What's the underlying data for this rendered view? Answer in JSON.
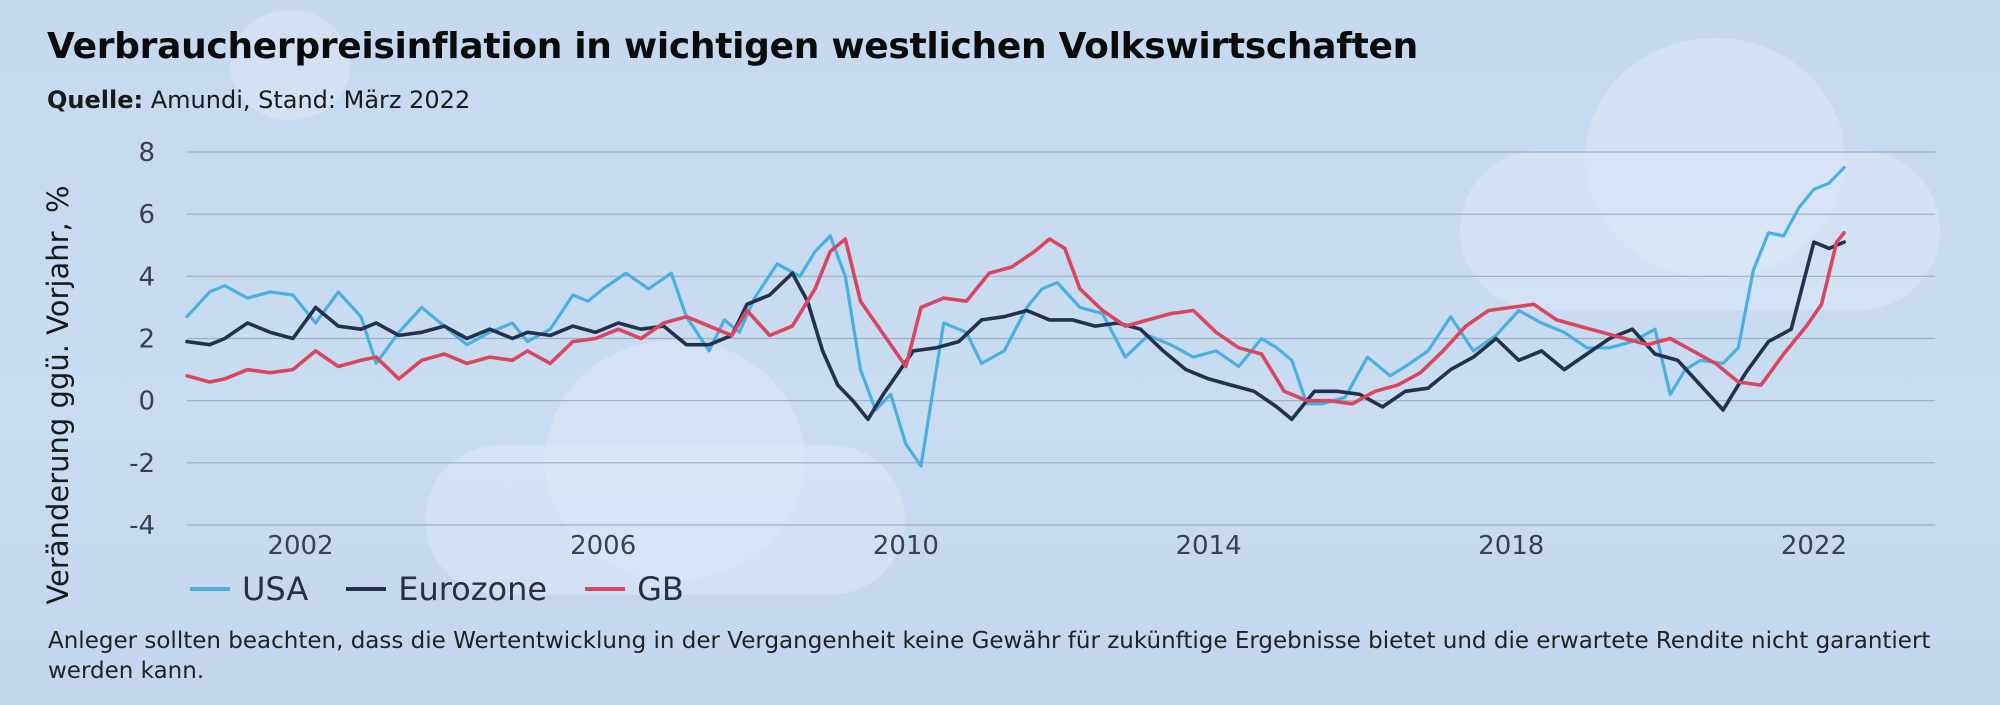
{
  "title": "Verbraucherpreisinflation in wichtigen westlichen Volkswirtschaften",
  "source": {
    "label": "Quelle:",
    "text": "Amundi, Stand: März 2022"
  },
  "disclaimer": "Anleger sollten beachten, dass die Wertentwicklung in der Vergangenheit keine Gewähr für zukünftige Ergebnisse bietet und die erwartete Rendite nicht garantiert werden kann.",
  "colors": {
    "USA": "#4ab0e4",
    "Eurozone": "#23304f",
    "GB": "#d8475f",
    "grid": "#9fafc4",
    "axis_text": "#3a3f55"
  },
  "chart_data": {
    "type": "line",
    "title": "Verbraucherpreisinflation in wichtigen westlichen Volkswirtschaften",
    "xlabel": "",
    "ylabel": "Veränderung ggü. Vorjahr, %",
    "xlim": [
      2000.5,
      2023.6
    ],
    "ylim": [
      -4,
      8
    ],
    "x_ticks": [
      2002,
      2006,
      2010,
      2014,
      2018,
      2022
    ],
    "y_ticks": [
      8,
      6,
      4,
      2,
      0,
      -2,
      -4
    ],
    "grid": true,
    "legend": "bottom-left",
    "series": [
      {
        "name": "USA",
        "x": [
          2000.5,
          2000.8,
          2001.0,
          2001.3,
          2001.6,
          2001.9,
          2002.2,
          2002.5,
          2002.8,
          2003.0,
          2003.3,
          2003.6,
          2003.9,
          2004.2,
          2004.5,
          2004.8,
          2005.0,
          2005.3,
          2005.6,
          2005.8,
          2006.0,
          2006.3,
          2006.6,
          2006.9,
          2007.1,
          2007.4,
          2007.6,
          2007.8,
          2008.0,
          2008.3,
          2008.6,
          2008.8,
          2009.0,
          2009.2,
          2009.4,
          2009.6,
          2009.8,
          2010.0,
          2010.2,
          2010.5,
          2010.8,
          2011.0,
          2011.3,
          2011.6,
          2011.8,
          2012.0,
          2012.3,
          2012.6,
          2012.9,
          2013.2,
          2013.5,
          2013.8,
          2014.1,
          2014.4,
          2014.7,
          2014.9,
          2015.1,
          2015.3,
          2015.5,
          2015.8,
          2016.1,
          2016.4,
          2016.6,
          2016.9,
          2017.2,
          2017.5,
          2017.8,
          2018.1,
          2018.4,
          2018.7,
          2019.0,
          2019.3,
          2019.6,
          2019.9,
          2020.1,
          2020.3,
          2020.5,
          2020.8,
          2021.0,
          2021.2,
          2021.4,
          2021.6,
          2021.8,
          2022.0,
          2022.2,
          2022.4
        ],
        "y": [
          2.7,
          3.5,
          3.7,
          3.3,
          3.5,
          3.4,
          2.5,
          3.5,
          2.7,
          1.2,
          2.2,
          3.0,
          2.4,
          1.8,
          2.2,
          2.5,
          1.9,
          2.3,
          3.4,
          3.2,
          3.6,
          4.1,
          3.6,
          4.1,
          2.7,
          1.6,
          2.6,
          2.2,
          3.3,
          4.4,
          4.0,
          4.8,
          5.3,
          4.0,
          1.0,
          -0.3,
          0.2,
          -1.4,
          -2.1,
          2.5,
          2.2,
          1.2,
          1.6,
          3.0,
          3.6,
          3.8,
          3.0,
          2.8,
          1.4,
          2.1,
          1.8,
          1.4,
          1.6,
          1.1,
          2.0,
          1.7,
          1.3,
          -0.1,
          -0.1,
          0.1,
          1.4,
          0.8,
          1.1,
          1.6,
          2.7,
          1.6,
          2.1,
          2.9,
          2.5,
          2.2,
          1.7,
          1.7,
          1.9,
          2.3,
          0.2,
          1.0,
          1.3,
          1.2,
          1.7,
          4.2,
          5.4,
          5.3,
          6.2,
          6.8,
          7.0,
          7.5
        ]
      },
      {
        "name": "Eurozone",
        "x": [
          2000.5,
          2000.8,
          2001.0,
          2001.3,
          2001.6,
          2001.9,
          2002.2,
          2002.5,
          2002.8,
          2003.0,
          2003.3,
          2003.6,
          2003.9,
          2004.2,
          2004.5,
          2004.8,
          2005.0,
          2005.3,
          2005.6,
          2005.9,
          2006.2,
          2006.5,
          2006.8,
          2007.1,
          2007.4,
          2007.7,
          2007.9,
          2008.2,
          2008.5,
          2008.7,
          2008.9,
          2009.1,
          2009.3,
          2009.5,
          2009.7,
          2009.9,
          2010.1,
          2010.4,
          2010.7,
          2011.0,
          2011.3,
          2011.6,
          2011.9,
          2012.2,
          2012.5,
          2012.8,
          2013.1,
          2013.4,
          2013.7,
          2014.0,
          2014.3,
          2014.6,
          2014.9,
          2015.1,
          2015.4,
          2015.7,
          2016.0,
          2016.3,
          2016.6,
          2016.9,
          2017.2,
          2017.5,
          2017.8,
          2018.1,
          2018.4,
          2018.7,
          2019.0,
          2019.3,
          2019.6,
          2019.9,
          2020.2,
          2020.5,
          2020.8,
          2021.1,
          2021.4,
          2021.7,
          2022.0,
          2022.2,
          2022.4
        ],
        "y": [
          1.9,
          1.8,
          2.0,
          2.5,
          2.2,
          2.0,
          3.0,
          2.4,
          2.3,
          2.5,
          2.1,
          2.2,
          2.4,
          2.0,
          2.3,
          2.0,
          2.2,
          2.1,
          2.4,
          2.2,
          2.5,
          2.3,
          2.4,
          1.8,
          1.8,
          2.1,
          3.1,
          3.4,
          4.1,
          3.2,
          1.6,
          0.5,
          0.0,
          -0.6,
          0.2,
          0.9,
          1.6,
          1.7,
          1.9,
          2.6,
          2.7,
          2.9,
          2.6,
          2.6,
          2.4,
          2.5,
          2.3,
          1.6,
          1.0,
          0.7,
          0.5,
          0.3,
          -0.2,
          -0.6,
          0.3,
          0.3,
          0.2,
          -0.2,
          0.3,
          0.4,
          1.0,
          1.4,
          2.0,
          1.3,
          1.6,
          1.0,
          1.5,
          2.0,
          2.3,
          1.5,
          1.3,
          0.5,
          -0.3,
          0.9,
          1.9,
          2.3,
          5.1,
          4.9,
          5.1
        ]
      },
      {
        "name": "GB",
        "x": [
          2000.5,
          2000.8,
          2001.0,
          2001.3,
          2001.6,
          2001.9,
          2002.2,
          2002.5,
          2002.8,
          2003.0,
          2003.3,
          2003.6,
          2003.9,
          2004.2,
          2004.5,
          2004.8,
          2005.0,
          2005.3,
          2005.6,
          2005.9,
          2006.2,
          2006.5,
          2006.8,
          2007.1,
          2007.4,
          2007.7,
          2007.9,
          2008.2,
          2008.5,
          2008.8,
          2009.0,
          2009.2,
          2009.4,
          2009.6,
          2009.8,
          2010.0,
          2010.2,
          2010.5,
          2010.8,
          2011.1,
          2011.4,
          2011.7,
          2011.9,
          2012.1,
          2012.3,
          2012.6,
          2012.9,
          2013.2,
          2013.5,
          2013.8,
          2014.1,
          2014.4,
          2014.7,
          2015.0,
          2015.3,
          2015.6,
          2015.9,
          2016.2,
          2016.5,
          2016.8,
          2017.1,
          2017.4,
          2017.7,
          2018.0,
          2018.3,
          2018.6,
          2018.9,
          2019.2,
          2019.5,
          2019.8,
          2020.1,
          2020.4,
          2020.7,
          2021.0,
          2021.3,
          2021.6,
          2021.9,
          2022.1,
          2022.3,
          2022.4
        ],
        "y": [
          0.8,
          0.6,
          0.7,
          1.0,
          0.9,
          1.0,
          1.6,
          1.1,
          1.3,
          1.4,
          0.7,
          1.3,
          1.5,
          1.2,
          1.4,
          1.3,
          1.6,
          1.2,
          1.9,
          2.0,
          2.3,
          2.0,
          2.5,
          2.7,
          2.4,
          2.1,
          2.9,
          2.1,
          2.4,
          3.6,
          4.8,
          5.2,
          3.2,
          2.5,
          1.8,
          1.1,
          3.0,
          3.3,
          3.2,
          4.1,
          4.3,
          4.8,
          5.2,
          4.9,
          3.6,
          2.9,
          2.4,
          2.6,
          2.8,
          2.9,
          2.2,
          1.7,
          1.5,
          0.3,
          0.0,
          0.0,
          -0.1,
          0.3,
          0.5,
          0.9,
          1.6,
          2.4,
          2.9,
          3.0,
          3.1,
          2.6,
          2.4,
          2.2,
          2.0,
          1.8,
          2.0,
          1.6,
          1.2,
          0.6,
          0.5,
          1.5,
          2.4,
          3.1,
          5.1,
          5.4
        ]
      }
    ]
  }
}
